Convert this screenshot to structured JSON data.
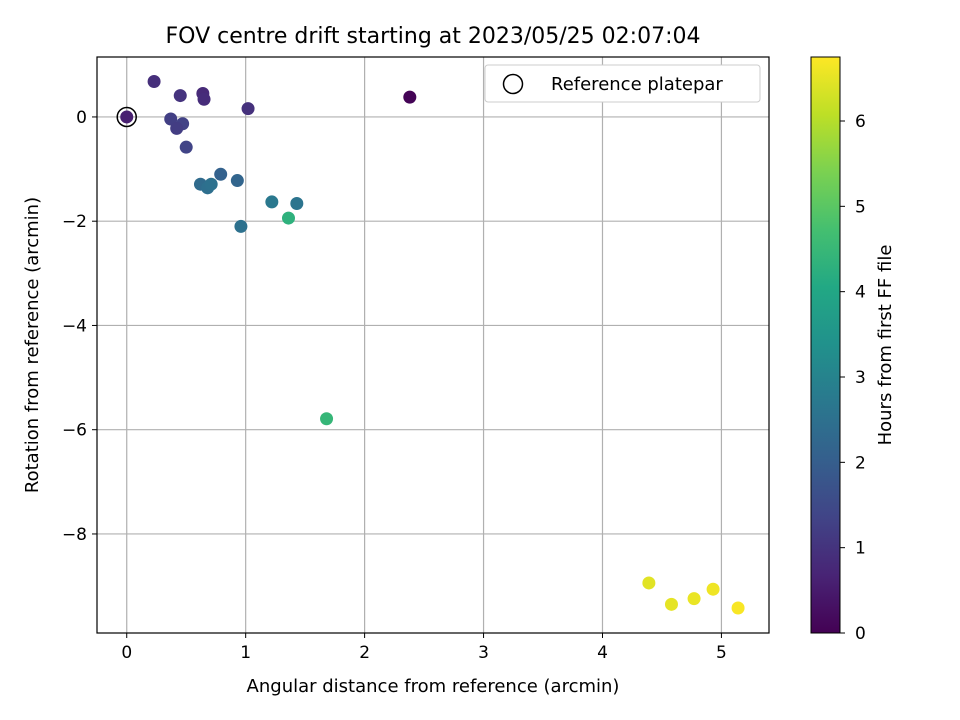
{
  "chart_data": {
    "type": "scatter",
    "title": "FOV centre drift starting at 2023/05/25 02:07:04",
    "xlabel": "Angular distance from reference (arcmin)",
    "ylabel": "Rotation from reference (arcmin)",
    "xlim": [
      -0.25,
      5.4
    ],
    "ylim": [
      -9.9,
      1.15
    ],
    "xticks": [
      0,
      1,
      2,
      3,
      4,
      5
    ],
    "yticks": [
      0,
      -2,
      -4,
      -6,
      -8
    ],
    "grid": true,
    "legend": {
      "placement": "top-right",
      "entries": [
        "Reference platepar"
      ]
    },
    "colorbar": {
      "label": "Hours from first FF file",
      "min": 0,
      "max": 6.75,
      "ticks": [
        0,
        1,
        2,
        3,
        4,
        5,
        6
      ],
      "colormap": "viridis"
    },
    "reference_point": {
      "x": 0,
      "y": 0
    },
    "points": [
      {
        "x": 0.0,
        "y": 0.0,
        "hours": 0.6
      },
      {
        "x": 0.23,
        "y": 0.68,
        "hours": 0.9
      },
      {
        "x": 0.45,
        "y": 0.41,
        "hours": 1.0
      },
      {
        "x": 0.64,
        "y": 0.45,
        "hours": 0.8
      },
      {
        "x": 0.65,
        "y": 0.34,
        "hours": 0.85
      },
      {
        "x": 1.02,
        "y": 0.16,
        "hours": 0.95
      },
      {
        "x": 2.38,
        "y": 0.38,
        "hours": 0.05
      },
      {
        "x": 0.37,
        "y": -0.04,
        "hours": 1.25
      },
      {
        "x": 0.47,
        "y": -0.13,
        "hours": 1.3
      },
      {
        "x": 0.42,
        "y": -0.22,
        "hours": 1.2
      },
      {
        "x": 0.5,
        "y": -0.58,
        "hours": 1.35
      },
      {
        "x": 0.62,
        "y": -1.29,
        "hours": 2.35
      },
      {
        "x": 0.68,
        "y": -1.36,
        "hours": 2.45
      },
      {
        "x": 0.71,
        "y": -1.29,
        "hours": 2.5
      },
      {
        "x": 0.79,
        "y": -1.1,
        "hours": 2.1
      },
      {
        "x": 0.93,
        "y": -1.22,
        "hours": 2.2
      },
      {
        "x": 0.96,
        "y": -2.1,
        "hours": 2.5
      },
      {
        "x": 1.22,
        "y": -1.63,
        "hours": 2.7
      },
      {
        "x": 1.43,
        "y": -1.66,
        "hours": 2.6
      },
      {
        "x": 1.36,
        "y": -1.94,
        "hours": 4.3
      },
      {
        "x": 1.68,
        "y": -5.79,
        "hours": 4.45
      },
      {
        "x": 4.39,
        "y": -8.94,
        "hours": 6.45
      },
      {
        "x": 4.58,
        "y": -9.35,
        "hours": 6.5
      },
      {
        "x": 4.77,
        "y": -9.24,
        "hours": 6.55
      },
      {
        "x": 4.93,
        "y": -9.06,
        "hours": 6.6
      },
      {
        "x": 5.14,
        "y": -9.42,
        "hours": 6.7
      }
    ]
  }
}
